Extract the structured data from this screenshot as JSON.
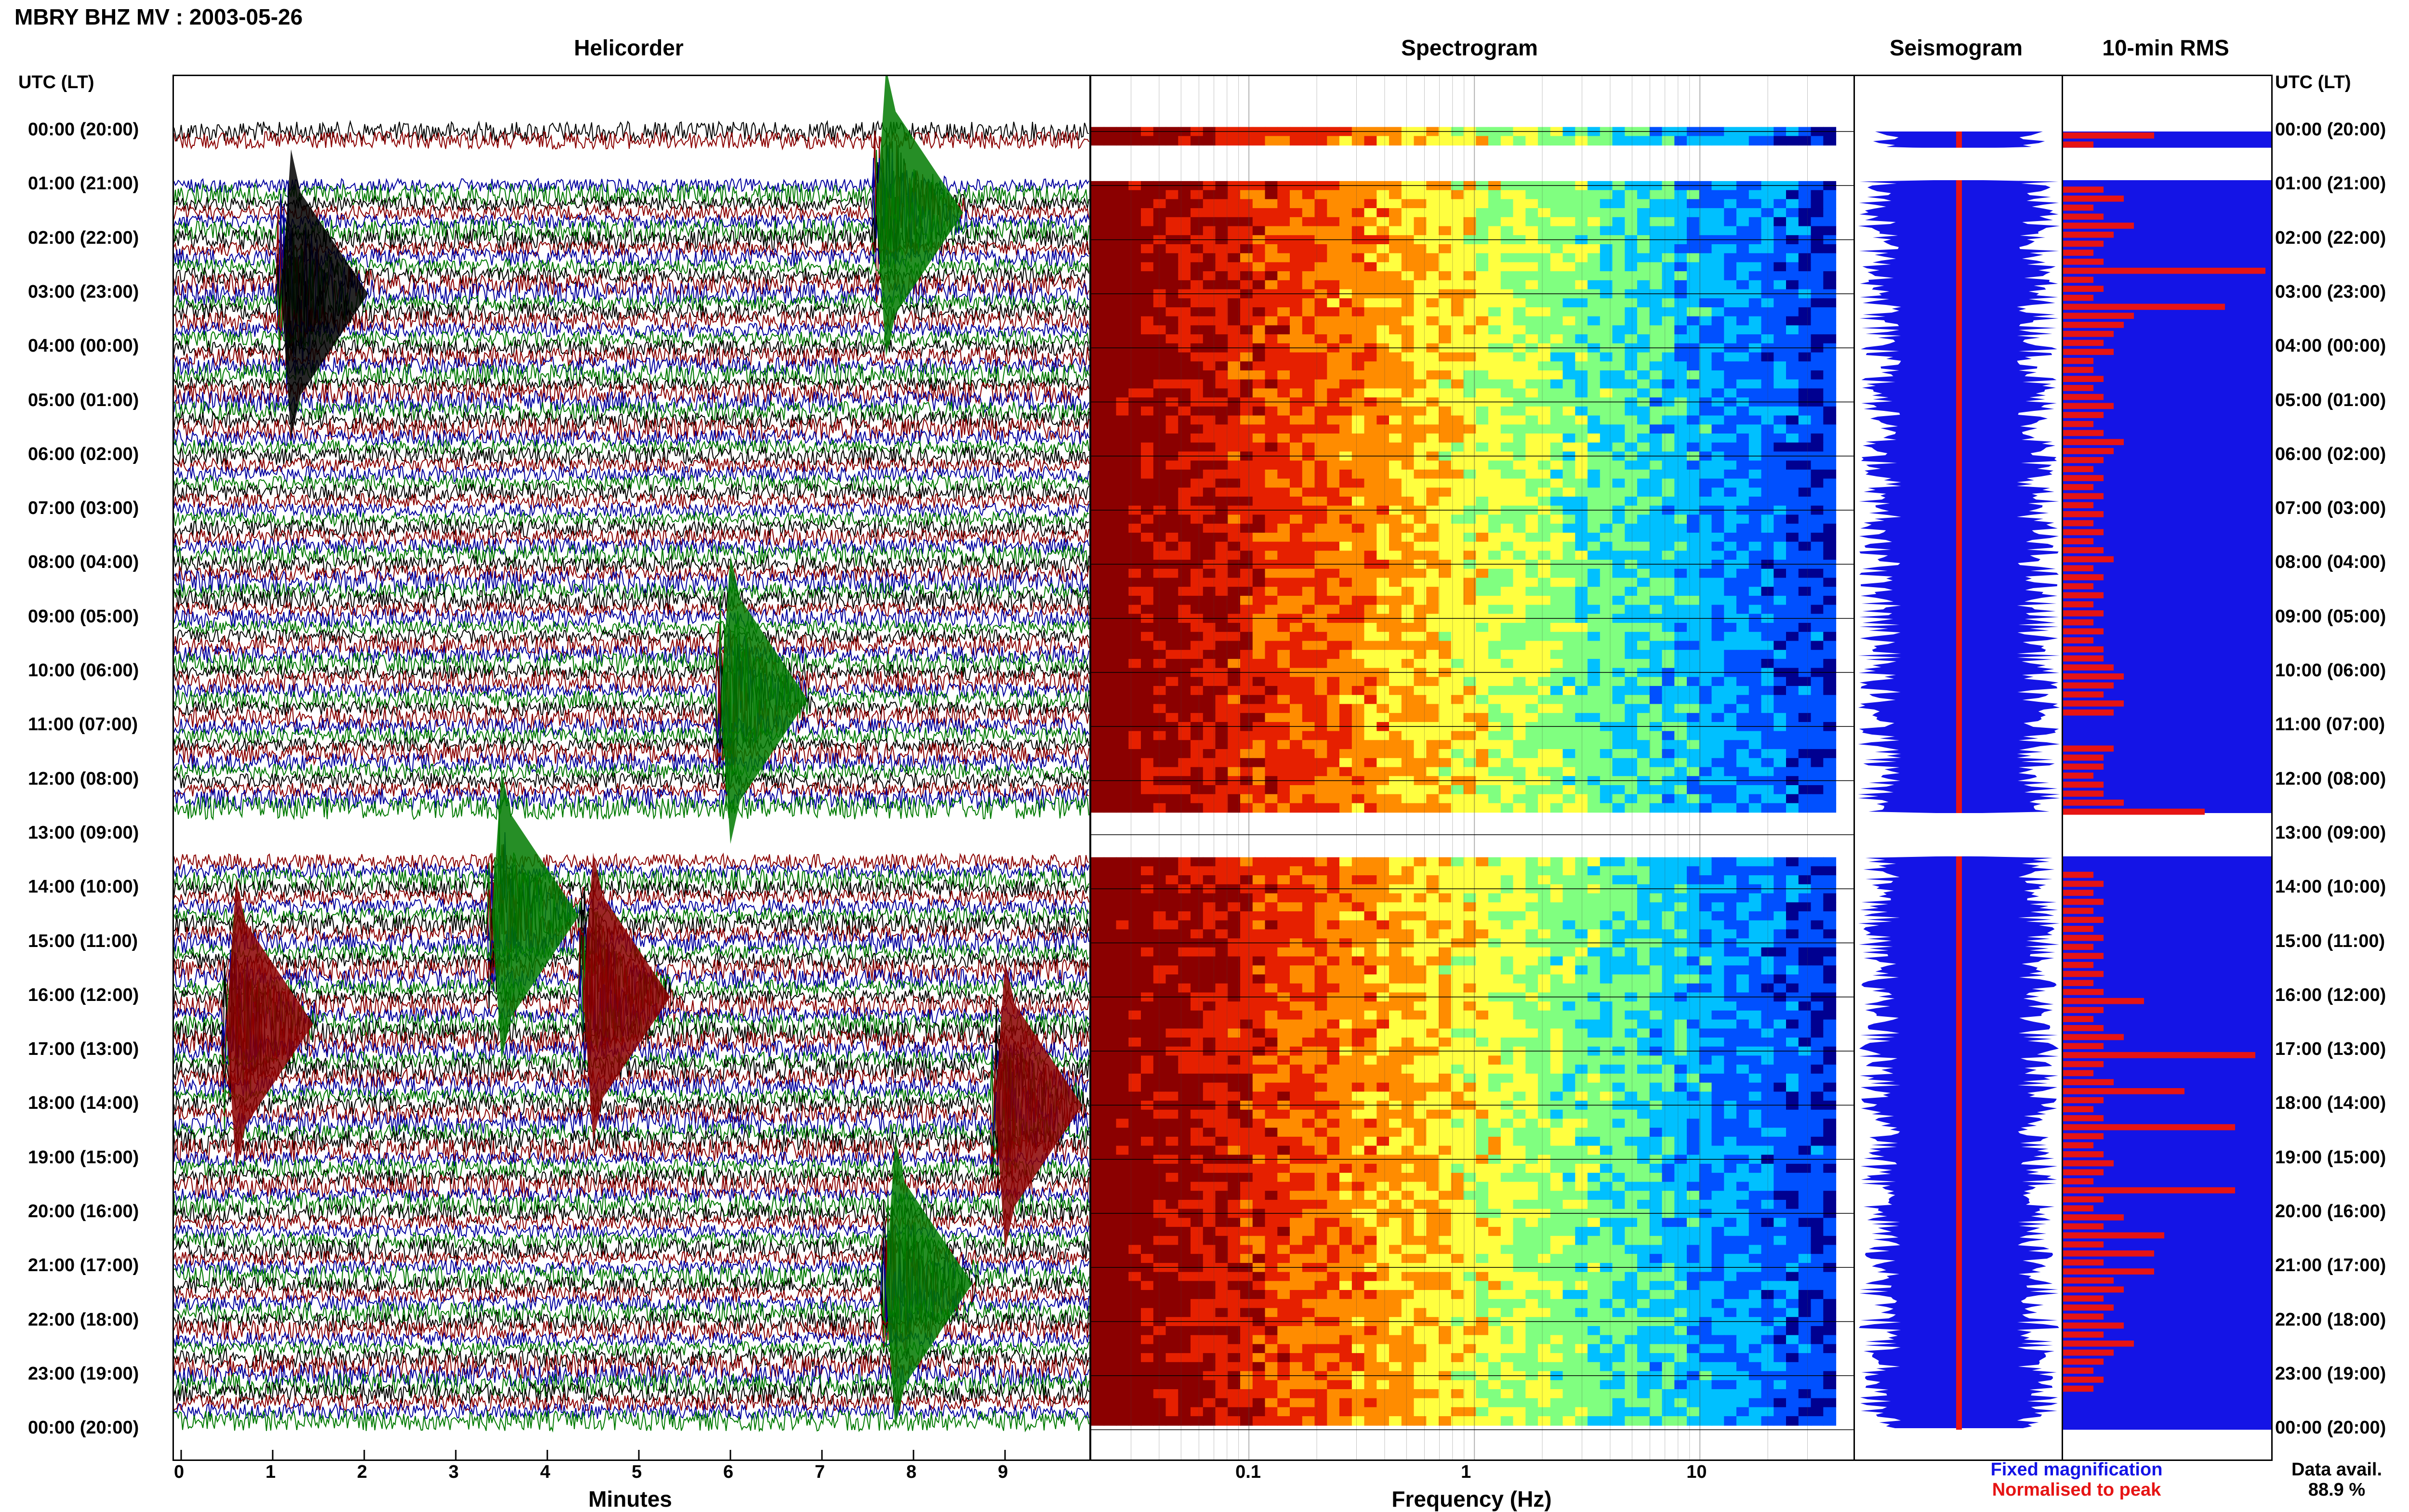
{
  "header": {
    "title": "MBRY BHZ MV : 2003-05-26"
  },
  "labels": {
    "utc_lt_left": "UTC (LT)",
    "utc_lt_right": "UTC (LT)"
  },
  "panels": {
    "helicorder": "Helicorder",
    "spectrogram": "Spectrogram",
    "seismogram": "Seismogram",
    "rms": "10-min RMS"
  },
  "legend": {
    "fixed": "Fixed magnification",
    "normalised": "Normalised to peak",
    "fixed_color": "#1414e6",
    "normalised_color": "#e61414",
    "data_avail_label": "Data avail.",
    "data_avail_value": "88.9 %"
  },
  "chart_data": [
    {
      "type": "line",
      "name": "helicorder",
      "title": "Helicorder",
      "xlabel": "Minutes",
      "xlim": [
        0,
        10
      ],
      "x_ticks": [
        "0",
        "1",
        "2",
        "3",
        "4",
        "5",
        "6",
        "7",
        "8",
        "9"
      ],
      "trace_colors": [
        "#000000",
        "#8b0000",
        "#0000a0",
        "#007a00"
      ],
      "hours_utc": [
        "00:00 (20:00)",
        "01:00 (21:00)",
        "02:00 (22:00)",
        "03:00 (23:00)",
        "04:00 (00:00)",
        "05:00 (01:00)",
        "06:00 (02:00)",
        "07:00 (03:00)",
        "08:00 (04:00)",
        "09:00 (05:00)",
        "10:00 (06:00)",
        "11:00 (07:00)",
        "12:00 (08:00)",
        "13:00 (09:00)",
        "14:00 (10:00)",
        "15:00 (11:00)",
        "16:00 (12:00)",
        "17:00 (13:00)",
        "18:00 (14:00)",
        "19:00 (15:00)",
        "20:00 (16:00)",
        "21:00 (17:00)",
        "22:00 (18:00)",
        "23:00 (19:00)",
        "00:00 (20:00)"
      ],
      "data_gaps_hours": [
        [
          0.3,
          0.9
        ],
        [
          12.6,
          13.4
        ]
      ],
      "large_events": [
        {
          "hour": 1.5,
          "minute": 7.7,
          "color": "#007a00"
        },
        {
          "hour": 3.0,
          "minute": 1.2,
          "color": "#000000"
        },
        {
          "hour": 10.5,
          "minute": 6.0,
          "color": "#007a00"
        },
        {
          "hour": 14.5,
          "minute": 3.5,
          "color": "#007a00"
        },
        {
          "hour": 16.0,
          "minute": 4.5,
          "color": "#8b0000"
        },
        {
          "hour": 16.5,
          "minute": 0.6,
          "color": "#8b0000"
        },
        {
          "hour": 18.0,
          "minute": 9.0,
          "color": "#8b0000"
        },
        {
          "hour": 21.3,
          "minute": 7.8,
          "color": "#007a00"
        }
      ]
    },
    {
      "type": "heatmap",
      "name": "spectrogram",
      "title": "Spectrogram",
      "xlabel": "Frequency (Hz)",
      "x_scale": "log",
      "xlim": [
        0.02,
        40
      ],
      "x_ticks": [
        "0.1",
        "1",
        "10"
      ],
      "colormap": [
        "#8b0000",
        "#e62000",
        "#ff8c00",
        "#ffff40",
        "#80ff80",
        "#00c0ff",
        "#0050ff",
        "#000090"
      ]
    },
    {
      "type": "line",
      "name": "seismogram",
      "title": "Seismogram",
      "series": [
        {
          "name": "Fixed magnification",
          "color": "#1414e6"
        },
        {
          "name": "Normalised to peak",
          "color": "#e61414"
        }
      ]
    },
    {
      "type": "bar",
      "name": "rms",
      "title": "10-min RMS",
      "orientation": "horizontal",
      "bar_color": "#e61414",
      "background_color": "#1414e6",
      "rms_values": [
        0.45,
        0.15,
        0,
        0,
        0,
        0,
        0.2,
        0.3,
        0.15,
        0.2,
        0.35,
        0.25,
        0.2,
        0.15,
        0.2,
        1.0,
        0.15,
        0.2,
        0.15,
        0.8,
        0.35,
        0.3,
        0.25,
        0.2,
        0.25,
        0.15,
        0.15,
        0.2,
        0.15,
        0.2,
        0.25,
        0.2,
        0.15,
        0.2,
        0.3,
        0.25,
        0.2,
        0.15,
        0.2,
        0.15,
        0.2,
        0.15,
        0.2,
        0.15,
        0.2,
        0.15,
        0.2,
        0.25,
        0.15,
        0.2,
        0.15,
        0.2,
        0.15,
        0.2,
        0.15,
        0.2,
        0.15,
        0.2,
        0.2,
        0.25,
        0.3,
        0.25,
        0.2,
        0.3,
        0.25,
        0.0,
        0.0,
        0.0,
        0.25,
        0.2,
        0.2,
        0.15,
        0.2,
        0.2,
        0.3,
        0.7,
        0.0,
        0.0,
        0.0,
        0.0,
        0.0,
        0.0,
        0.15,
        0.2,
        0.15,
        0.2,
        0.15,
        0.2,
        0.15,
        0.2,
        0.15,
        0.2,
        0.15,
        0.2,
        0.15,
        0.2,
        0.4,
        0.2,
        0.15,
        0.2,
        0.3,
        0.2,
        0.95,
        0.2,
        0.15,
        0.25,
        0.6,
        0.2,
        0.15,
        0.2,
        0.85,
        0.2,
        0.15,
        0.2,
        0.25,
        0.2,
        0.15,
        0.85,
        0.2,
        0.15,
        0.3,
        0.2,
        0.5,
        0.2,
        0.45,
        0.2,
        0.45,
        0.25,
        0.3,
        0.2,
        0.25,
        0.2,
        0.3,
        0.2,
        0.35,
        0.25,
        0.2,
        0.15,
        0.2,
        0.15
      ]
    }
  ]
}
